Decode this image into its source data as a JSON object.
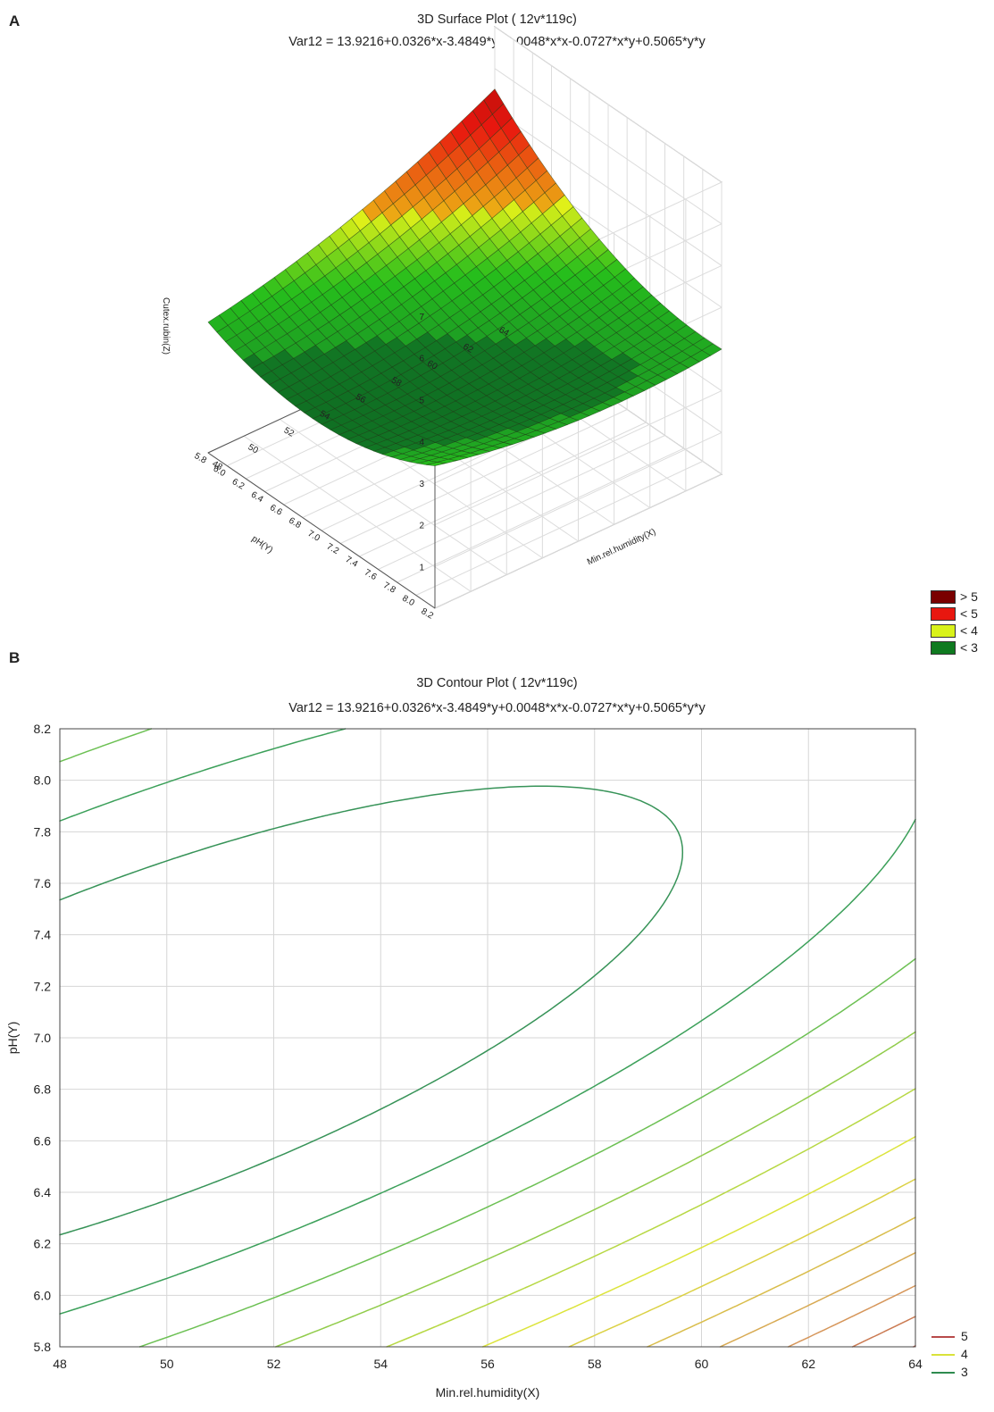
{
  "chart_data": [
    {
      "panel": "A",
      "type": "surface",
      "title": "3D Surface Plot ( 12v*119c)",
      "subtitle": "Var12 = 13.9216+0.0326*x-3.4849*y+0.0048*x*x-0.0727*x*y+0.5065*y*y",
      "xlabel": "Min.rel.humidity(X)",
      "ylabel": "pH(Y)",
      "zlabel": "Cutex.rubin(Z)",
      "xlim": [
        48,
        64
      ],
      "ylim": [
        5.8,
        8.2
      ],
      "zlim": [
        0,
        7
      ],
      "x_ticks": [
        "48",
        "50",
        "52",
        "54",
        "56",
        "58",
        "60",
        "62",
        "64"
      ],
      "y_ticks": [
        "5.8",
        "6.0",
        "6.2",
        "6.4",
        "6.6",
        "6.8",
        "7.0",
        "7.2",
        "7.4",
        "7.6",
        "7.8",
        "8.0",
        "8.2"
      ],
      "z_ticks": [
        "1",
        "2",
        "3",
        "4",
        "5",
        "6",
        "7"
      ],
      "coefficients": {
        "c0": 13.9216,
        "x": 0.0326,
        "y": -3.4849,
        "xx": 0.0048,
        "xy": -0.0727,
        "yy": 0.5065
      },
      "legend": [
        {
          "label": "> 5",
          "color": "#7a0000"
        },
        {
          "label": "< 5",
          "color": "#e8170f"
        },
        {
          "label": "< 4",
          "color": "#d9f21a"
        },
        {
          "label": "< 3",
          "color": "#0f7a20"
        }
      ]
    },
    {
      "panel": "B",
      "type": "contour",
      "title": "3D Contour Plot ( 12v*119c)",
      "subtitle": "Var12 = 13.9216+0.0326*x-3.4849*y+0.0048*x*x-0.0727*x*y+0.5065*y*y",
      "xlabel": "Min.rel.humidity(X)",
      "ylabel": "pH(Y)",
      "xlim": [
        48,
        64
      ],
      "ylim": [
        5.8,
        8.2
      ],
      "x_ticks": [
        "48",
        "50",
        "52",
        "54",
        "56",
        "58",
        "60",
        "62",
        "64"
      ],
      "y_ticks": [
        "5.8",
        "6.0",
        "6.2",
        "6.4",
        "6.6",
        "6.8",
        "7.0",
        "7.2",
        "7.4",
        "7.6",
        "7.8",
        "8.0",
        "8.2"
      ],
      "grid": true,
      "legend_position": "bottom-right",
      "legend": [
        {
          "label": "5",
          "color": "#b84a4a"
        },
        {
          "label": "4",
          "color": "#d9e23a"
        },
        {
          "label": "3",
          "color": "#2e8b4f"
        }
      ]
    }
  ],
  "panels": {
    "a_label": "A",
    "b_label": "B"
  }
}
